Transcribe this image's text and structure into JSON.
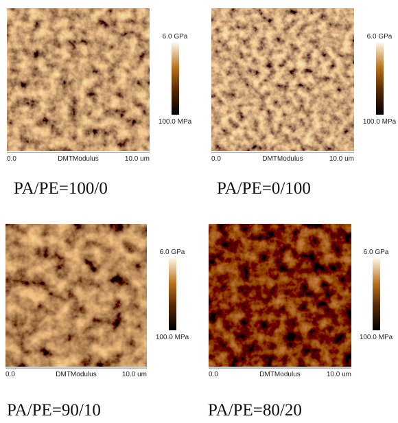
{
  "panels": [
    {
      "axis": {
        "start": "0.0",
        "channel": "DMTModulus",
        "end": "10.0 um"
      },
      "colorbar": {
        "max": "6.0 GPa",
        "min": "100.0 MPa"
      },
      "caption": "PA/PE=100/0"
    },
    {
      "axis": {
        "start": "0.0",
        "channel": "DMTModulus",
        "end": "10.0 um"
      },
      "colorbar": {
        "max": "6.0 GPa",
        "min": "100.0 MPa"
      },
      "caption": "PA/PE=0/100"
    },
    {
      "axis": {
        "start": "0.0",
        "channel": "DMTModulus",
        "end": "10.0 um"
      },
      "colorbar": {
        "max": "6.0 GPa",
        "min": "100.0 MPa"
      },
      "caption": "PA/PE=90/10"
    },
    {
      "axis": {
        "start": "0.0",
        "channel": "DMTModulus",
        "end": "10.0 um"
      },
      "colorbar": {
        "max": "6.0 GPa",
        "min": "100.0 MPa"
      },
      "caption": "PA/PE=80/20"
    }
  ]
}
